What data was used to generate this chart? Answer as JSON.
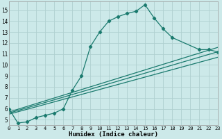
{
  "xlabel": "Humidex (Indice chaleur)",
  "bg_color": "#cce9e9",
  "grid_color": "#b0d0d0",
  "line_color": "#1a7a6e",
  "xlim": [
    0,
    23
  ],
  "ylim": [
    4.5,
    15.8
  ],
  "yticks": [
    5,
    6,
    7,
    8,
    9,
    10,
    11,
    12,
    13,
    14,
    15
  ],
  "xticks": [
    0,
    1,
    2,
    3,
    4,
    5,
    6,
    7,
    8,
    9,
    10,
    11,
    12,
    13,
    14,
    15,
    16,
    17,
    18,
    19,
    20,
    21,
    22,
    23
  ],
  "curve_x": [
    0,
    1,
    2,
    3,
    4,
    5,
    6,
    7,
    8,
    9,
    10,
    11,
    12,
    13,
    14,
    15,
    16,
    17,
    18,
    21,
    22,
    23
  ],
  "curve_y": [
    6.0,
    4.7,
    4.8,
    5.2,
    5.4,
    5.6,
    6.0,
    7.7,
    9.0,
    11.7,
    13.0,
    14.0,
    14.4,
    14.7,
    14.9,
    15.5,
    14.3,
    13.3,
    12.5,
    11.4,
    11.4,
    11.2
  ],
  "straight_lines": [
    {
      "x": [
        0,
        23
      ],
      "y": [
        5.7,
        11.6
      ]
    },
    {
      "x": [
        0,
        23
      ],
      "y": [
        5.6,
        11.2
      ]
    },
    {
      "x": [
        0,
        23
      ],
      "y": [
        5.5,
        10.7
      ]
    }
  ]
}
